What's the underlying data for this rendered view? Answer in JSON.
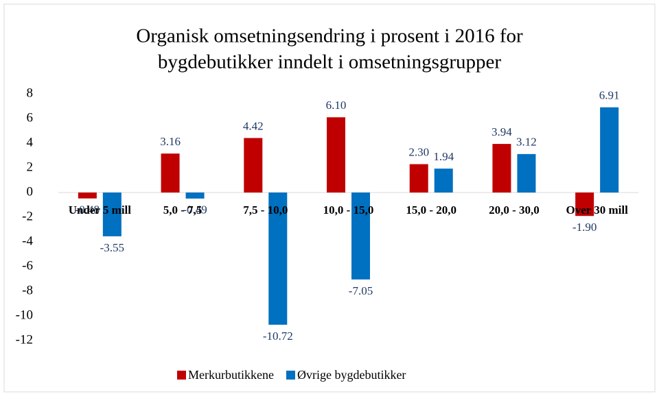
{
  "chart_data": {
    "type": "bar",
    "title": [
      "Organisk omsetningsendring i prosent i 2016 for",
      "bygdebutikker inndelt i omsetningsgrupper"
    ],
    "categories": [
      "Under 5 mill",
      "5,0 - 7,5",
      "7,5 - 10,0",
      "10,0 - 15,0",
      "15,0 - 20,0",
      "20,0 - 30,0",
      "Over 30 mill"
    ],
    "series": [
      {
        "name": "Merkurbutikkene",
        "color": "#c00000",
        "values": [
          -0.48,
          3.16,
          4.42,
          6.1,
          2.3,
          3.94,
          -1.9
        ],
        "value_labels": [
          "-0.48",
          "3.16",
          "4.42",
          "6.10",
          "2.30",
          "3.94",
          "-1.90"
        ]
      },
      {
        "name": "Øvrige bygdebutikker",
        "color": "#0070c0",
        "values": [
          -3.55,
          -0.49,
          -10.72,
          -7.05,
          1.94,
          3.12,
          6.91
        ],
        "value_labels": [
          "-3.55",
          "-0.49",
          "-10.72",
          "-7.05",
          "1.94",
          "3.12",
          "6.91"
        ]
      }
    ],
    "ylim": [
      -12,
      8
    ],
    "yticks": [
      8,
      6,
      4,
      2,
      0,
      -2,
      -4,
      -6,
      -8,
      -10,
      -12
    ],
    "legend": "bottom",
    "grid": false
  }
}
